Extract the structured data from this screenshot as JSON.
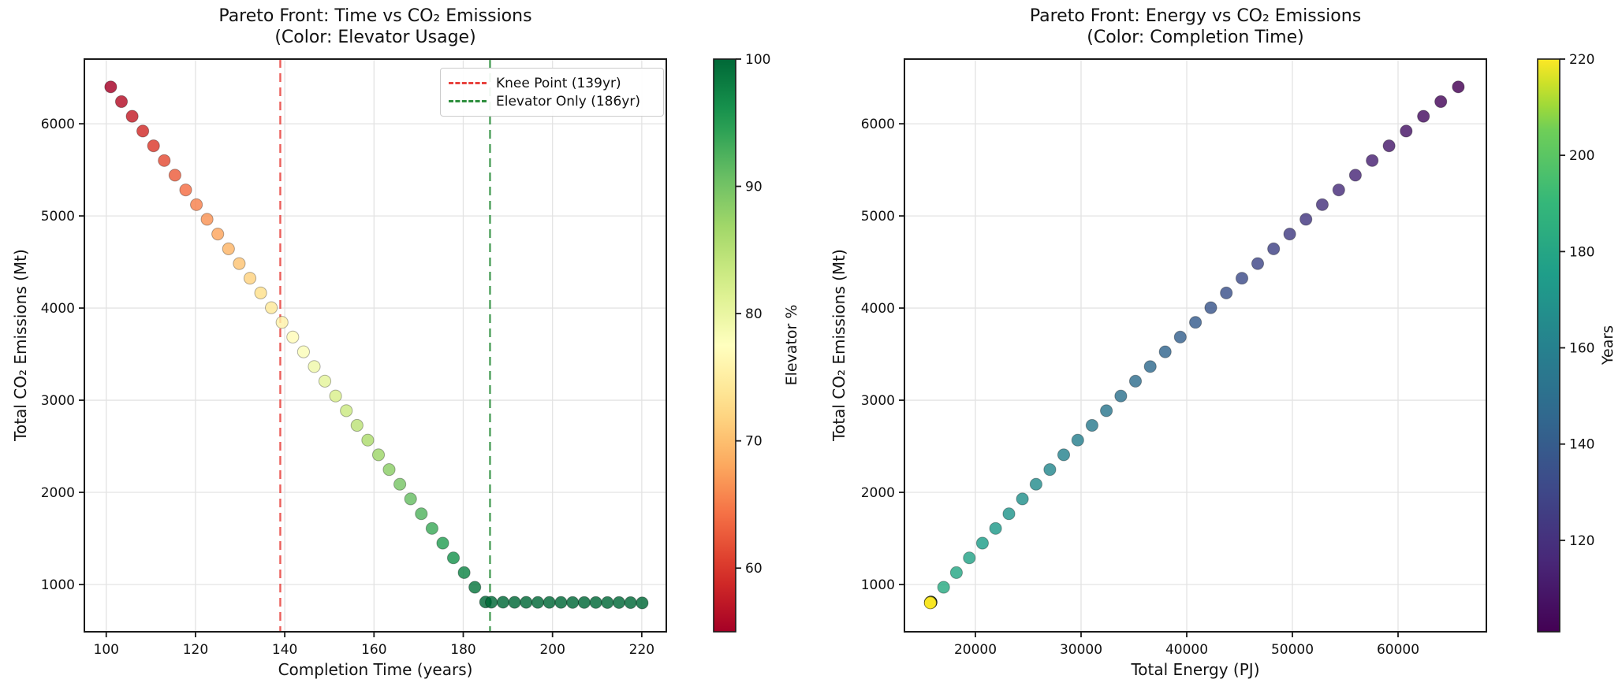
{
  "figure": {
    "background": "#ffffff",
    "grid_color": "#e3e3e3",
    "spine_color": "#1a1a1a",
    "point_edge_color": "#000000"
  },
  "chart_data": [
    {
      "type": "scatter",
      "title_line1": "Pareto Front: Time vs CO₂ Emissions",
      "title_line2": "(Color: Elevator Usage)",
      "xlabel": "Completion Time (years)",
      "ylabel": "Total CO₂ Emissions (Mt)",
      "xlim": [
        95.1,
        225.5
      ],
      "ylim": [
        487,
        6702
      ],
      "xticks": [
        100,
        120,
        140,
        160,
        180,
        200,
        220
      ],
      "yticks": [
        1000,
        2000,
        3000,
        4000,
        5000,
        6000
      ],
      "grid": true,
      "colormap": "RdYlGn",
      "colorbar": {
        "label": "Elevator %",
        "vmin": 55,
        "vmax": 100,
        "ticks": [
          60,
          70,
          80,
          90,
          100
        ]
      },
      "vlines": [
        {
          "x": 139,
          "color": "#e8433e",
          "label": "Knee Point (139yr)"
        },
        {
          "x": 186,
          "color": "#2f8f3f",
          "label": "Elevator Only (186yr)"
        }
      ],
      "legend_position": "upper right",
      "points": {
        "x": [
          101,
          103.4,
          105.8,
          108.2,
          110.6,
          113,
          115.4,
          117.8,
          120.2,
          122.6,
          125,
          127.4,
          129.8,
          132.2,
          134.6,
          137,
          139.4,
          141.8,
          144.2,
          146.6,
          149,
          151.4,
          153.8,
          156.2,
          158.6,
          161,
          163.4,
          165.8,
          168.2,
          170.6,
          173,
          175.4,
          177.8,
          180.2,
          182.6,
          185,
          186.3,
          188.9,
          191.5,
          194.1,
          196.7,
          199.3,
          201.9,
          204.5,
          207.1,
          209.7,
          212.3,
          214.9,
          217.5,
          220.1
        ],
        "y": [
          6400,
          6240,
          6081,
          5921,
          5761,
          5601,
          5442,
          5282,
          5122,
          4963,
          4803,
          4643,
          4483,
          4324,
          4164,
          4004,
          3845,
          3685,
          3525,
          3365,
          3206,
          3046,
          2886,
          2727,
          2567,
          2407,
          2247,
          2088,
          1928,
          1768,
          1609,
          1449,
          1289,
          1129,
          970,
          810,
          808,
          808,
          807,
          807,
          806,
          806,
          806,
          805,
          805,
          805,
          804,
          804,
          803,
          800
        ],
        "c": [
          55,
          56.3,
          57.6,
          58.9,
          60.1,
          61.4,
          62.7,
          64,
          65.3,
          66.6,
          67.9,
          69.1,
          70.4,
          71.7,
          73,
          74.3,
          75.6,
          76.9,
          78.1,
          79.4,
          80.7,
          82,
          83.3,
          84.6,
          85.9,
          87.1,
          88.4,
          89.7,
          91,
          92.3,
          93.6,
          94.9,
          96.1,
          97.4,
          98.7,
          100,
          100,
          100,
          100,
          100,
          100,
          100,
          100,
          100,
          100,
          100,
          100,
          100,
          100,
          100
        ]
      }
    },
    {
      "type": "scatter",
      "title_line1": "Pareto Front: Energy vs CO₂ Emissions",
      "title_line2": "(Color: Completion Time)",
      "xlabel": "Total Energy (PJ)",
      "ylabel": "Total CO₂ Emissions (Mt)",
      "xlim": [
        13284,
        68358
      ],
      "ylim": [
        487,
        6702
      ],
      "xticks": [
        20000,
        30000,
        40000,
        50000,
        60000
      ],
      "yticks": [
        1000,
        2000,
        3000,
        4000,
        5000,
        6000
      ],
      "grid": true,
      "colormap": "viridis",
      "colorbar": {
        "label": "Years",
        "vmin": 101,
        "vmax": 220,
        "ticks": [
          120,
          140,
          160,
          180,
          200,
          220
        ]
      },
      "vlines": [],
      "legend_position": "none",
      "points": {
        "x": [
          65700,
          64043,
          62401,
          60771,
          59152,
          57553,
          55964,
          54389,
          52828,
          51281,
          49746,
          48225,
          46718,
          45224,
          43744,
          42278,
          40825,
          39385,
          37960,
          36548,
          35149,
          33764,
          32393,
          31035,
          29690,
          28360,
          27043,
          25739,
          24449,
          23173,
          21910,
          20661,
          19425,
          18203,
          16995,
          15800,
          15790,
          15785,
          15780,
          15775,
          15770,
          15765,
          15760,
          15758,
          15755,
          15752,
          15750,
          15745,
          15740,
          15735
        ],
        "y": [
          6400,
          6240,
          6081,
          5921,
          5761,
          5601,
          5442,
          5282,
          5122,
          4963,
          4803,
          4643,
          4483,
          4324,
          4164,
          4004,
          3845,
          3685,
          3525,
          3365,
          3206,
          3046,
          2886,
          2727,
          2567,
          2407,
          2247,
          2088,
          1928,
          1768,
          1609,
          1449,
          1289,
          1129,
          970,
          810,
          808,
          808,
          807,
          807,
          806,
          806,
          806,
          805,
          805,
          805,
          804,
          804,
          803,
          800
        ],
        "c": [
          101,
          103.4,
          105.8,
          108.2,
          110.6,
          113,
          115.4,
          117.8,
          120.2,
          122.6,
          125,
          127.4,
          129.8,
          132.2,
          134.6,
          137,
          139.4,
          141.8,
          144.2,
          146.6,
          149,
          151.4,
          153.8,
          156.2,
          158.6,
          161,
          163.4,
          165.8,
          168.2,
          170.6,
          173,
          175.4,
          177.8,
          180.2,
          182.6,
          185,
          186.3,
          188.9,
          191.5,
          194.1,
          196.7,
          199.3,
          201.9,
          204.5,
          207.1,
          209.7,
          212.3,
          214.9,
          217.5,
          220.1
        ]
      }
    }
  ]
}
